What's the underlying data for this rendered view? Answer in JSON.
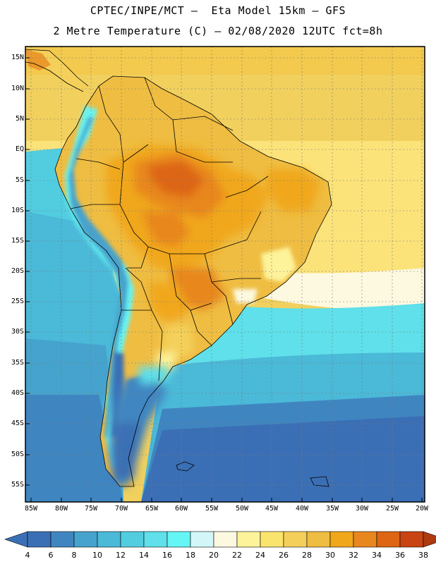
{
  "title": {
    "line1": "CPTEC/INPE/MCT –  Eta Model 15km – GFS",
    "line2": "2 Metre Temperature (C) – 02/08/2020 12UTC fct=8h"
  },
  "map": {
    "variable": "2 Metre Temperature",
    "units": "C",
    "lat_labels": [
      "15N",
      "10N",
      "5N",
      "EQ",
      "5S",
      "10S",
      "15S",
      "20S",
      "25S",
      "30S",
      "35S",
      "40S",
      "45S",
      "50S",
      "55S"
    ],
    "lon_labels": [
      "85W",
      "80W",
      "75W",
      "70W",
      "65W",
      "60W",
      "55W",
      "50W",
      "45W",
      "40W",
      "35W",
      "30W",
      "25W",
      "20W"
    ]
  },
  "colorbar": {
    "labels": [
      "4",
      "6",
      "8",
      "10",
      "12",
      "14",
      "16",
      "18",
      "20",
      "22",
      "24",
      "26",
      "28",
      "30",
      "32",
      "34",
      "36",
      "38"
    ],
    "colors": [
      "#3b6fb5",
      "#3b6fb5",
      "#3f86c1",
      "#46a3cd",
      "#4bb9d8",
      "#52cde0",
      "#5fe0ea",
      "#66f5f5",
      "#d3f7f9",
      "#fdf8e0",
      "#fdf39a",
      "#fbe46e",
      "#f4d05a",
      "#efbd42",
      "#f0a71a",
      "#e8871e",
      "#dd6513",
      "#c84412",
      "#b03a10"
    ]
  }
}
